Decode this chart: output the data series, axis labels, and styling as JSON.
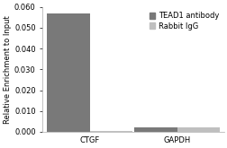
{
  "categories": [
    "CTGF",
    "GAPDH"
  ],
  "tead1_values": [
    0.057,
    0.002
  ],
  "rabbit_values": [
    0.0003,
    0.002
  ],
  "tead1_color": "#797979",
  "rabbit_color": "#bfbfbf",
  "ylabel": "Relative Enrichment to Input",
  "ylim": [
    0,
    0.06
  ],
  "yticks": [
    0.0,
    0.01,
    0.02,
    0.03,
    0.04,
    0.05,
    0.06
  ],
  "legend_labels": [
    "TEAD1 antibody",
    "Rabbit IgG"
  ],
  "bar_width": 0.32,
  "x_positions": [
    0.35,
    1.0
  ],
  "background_color": "#ffffff",
  "plot_bg_color": "#ffffff",
  "ylabel_fontsize": 6.0,
  "tick_fontsize": 6.0,
  "legend_fontsize": 6.0,
  "spine_color": "#aaaaaa"
}
